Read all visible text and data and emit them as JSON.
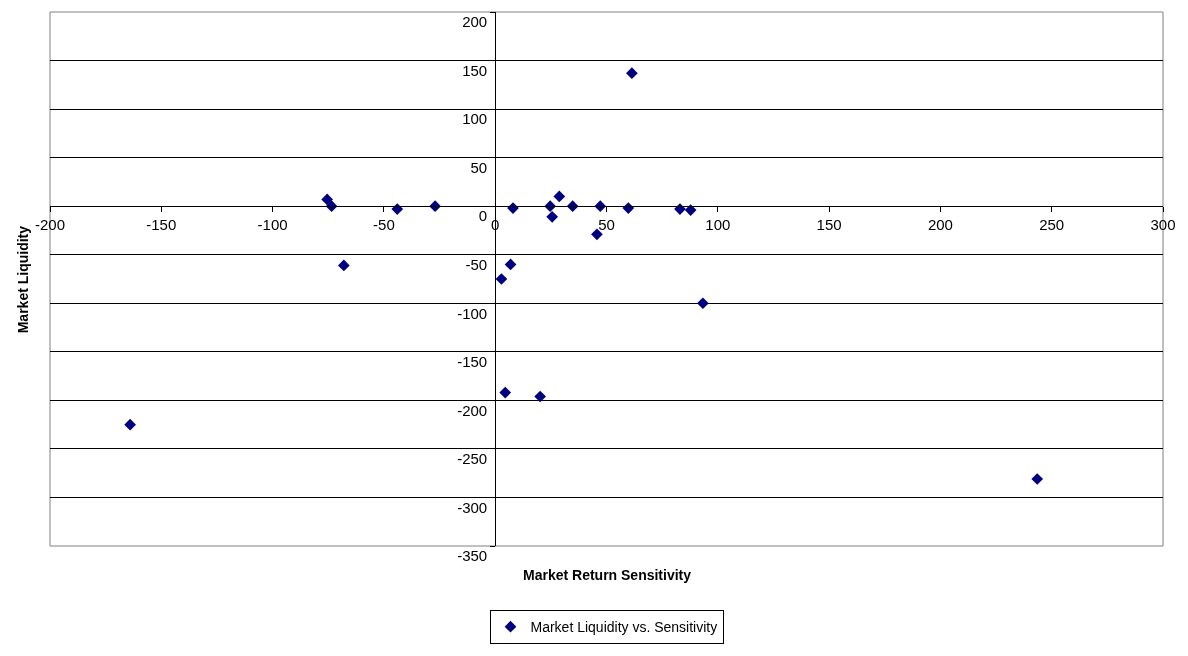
{
  "chart_data": {
    "type": "scatter",
    "xlabel": "Market Return Sensitivity",
    "ylabel": "Market Liquidity",
    "x": [
      -75.5,
      -73.5,
      -68,
      -44,
      -27,
      8,
      24.7,
      28.8,
      25.6,
      34.8,
      47.2,
      45.7,
      59.8,
      83,
      87.8,
      6.9,
      2.8,
      61.4,
      93.3,
      4.5,
      20.2,
      -164,
      243.5
    ],
    "series": [
      {
        "name": "Market Liquidity vs. Sensitivity",
        "color": "#000080",
        "values": [
          7,
          0,
          -61,
          -3,
          0,
          -2,
          0,
          10,
          -11,
          0,
          0,
          -29,
          -2,
          -3,
          -4,
          -60,
          -75,
          137,
          -100,
          -192,
          -196,
          -225,
          -281
        ]
      }
    ],
    "xlim": [
      -200,
      300
    ],
    "xticks": [
      -200,
      -150,
      -100,
      -50,
      0,
      50,
      100,
      150,
      200,
      250,
      300
    ],
    "ylim": [
      -350,
      200
    ],
    "yticks": [
      -350,
      -300,
      -250,
      -200,
      -150,
      -100,
      -50,
      0,
      50,
      100,
      150,
      200
    ],
    "grid": "y",
    "legend": "bottom",
    "marker": "diamond"
  }
}
